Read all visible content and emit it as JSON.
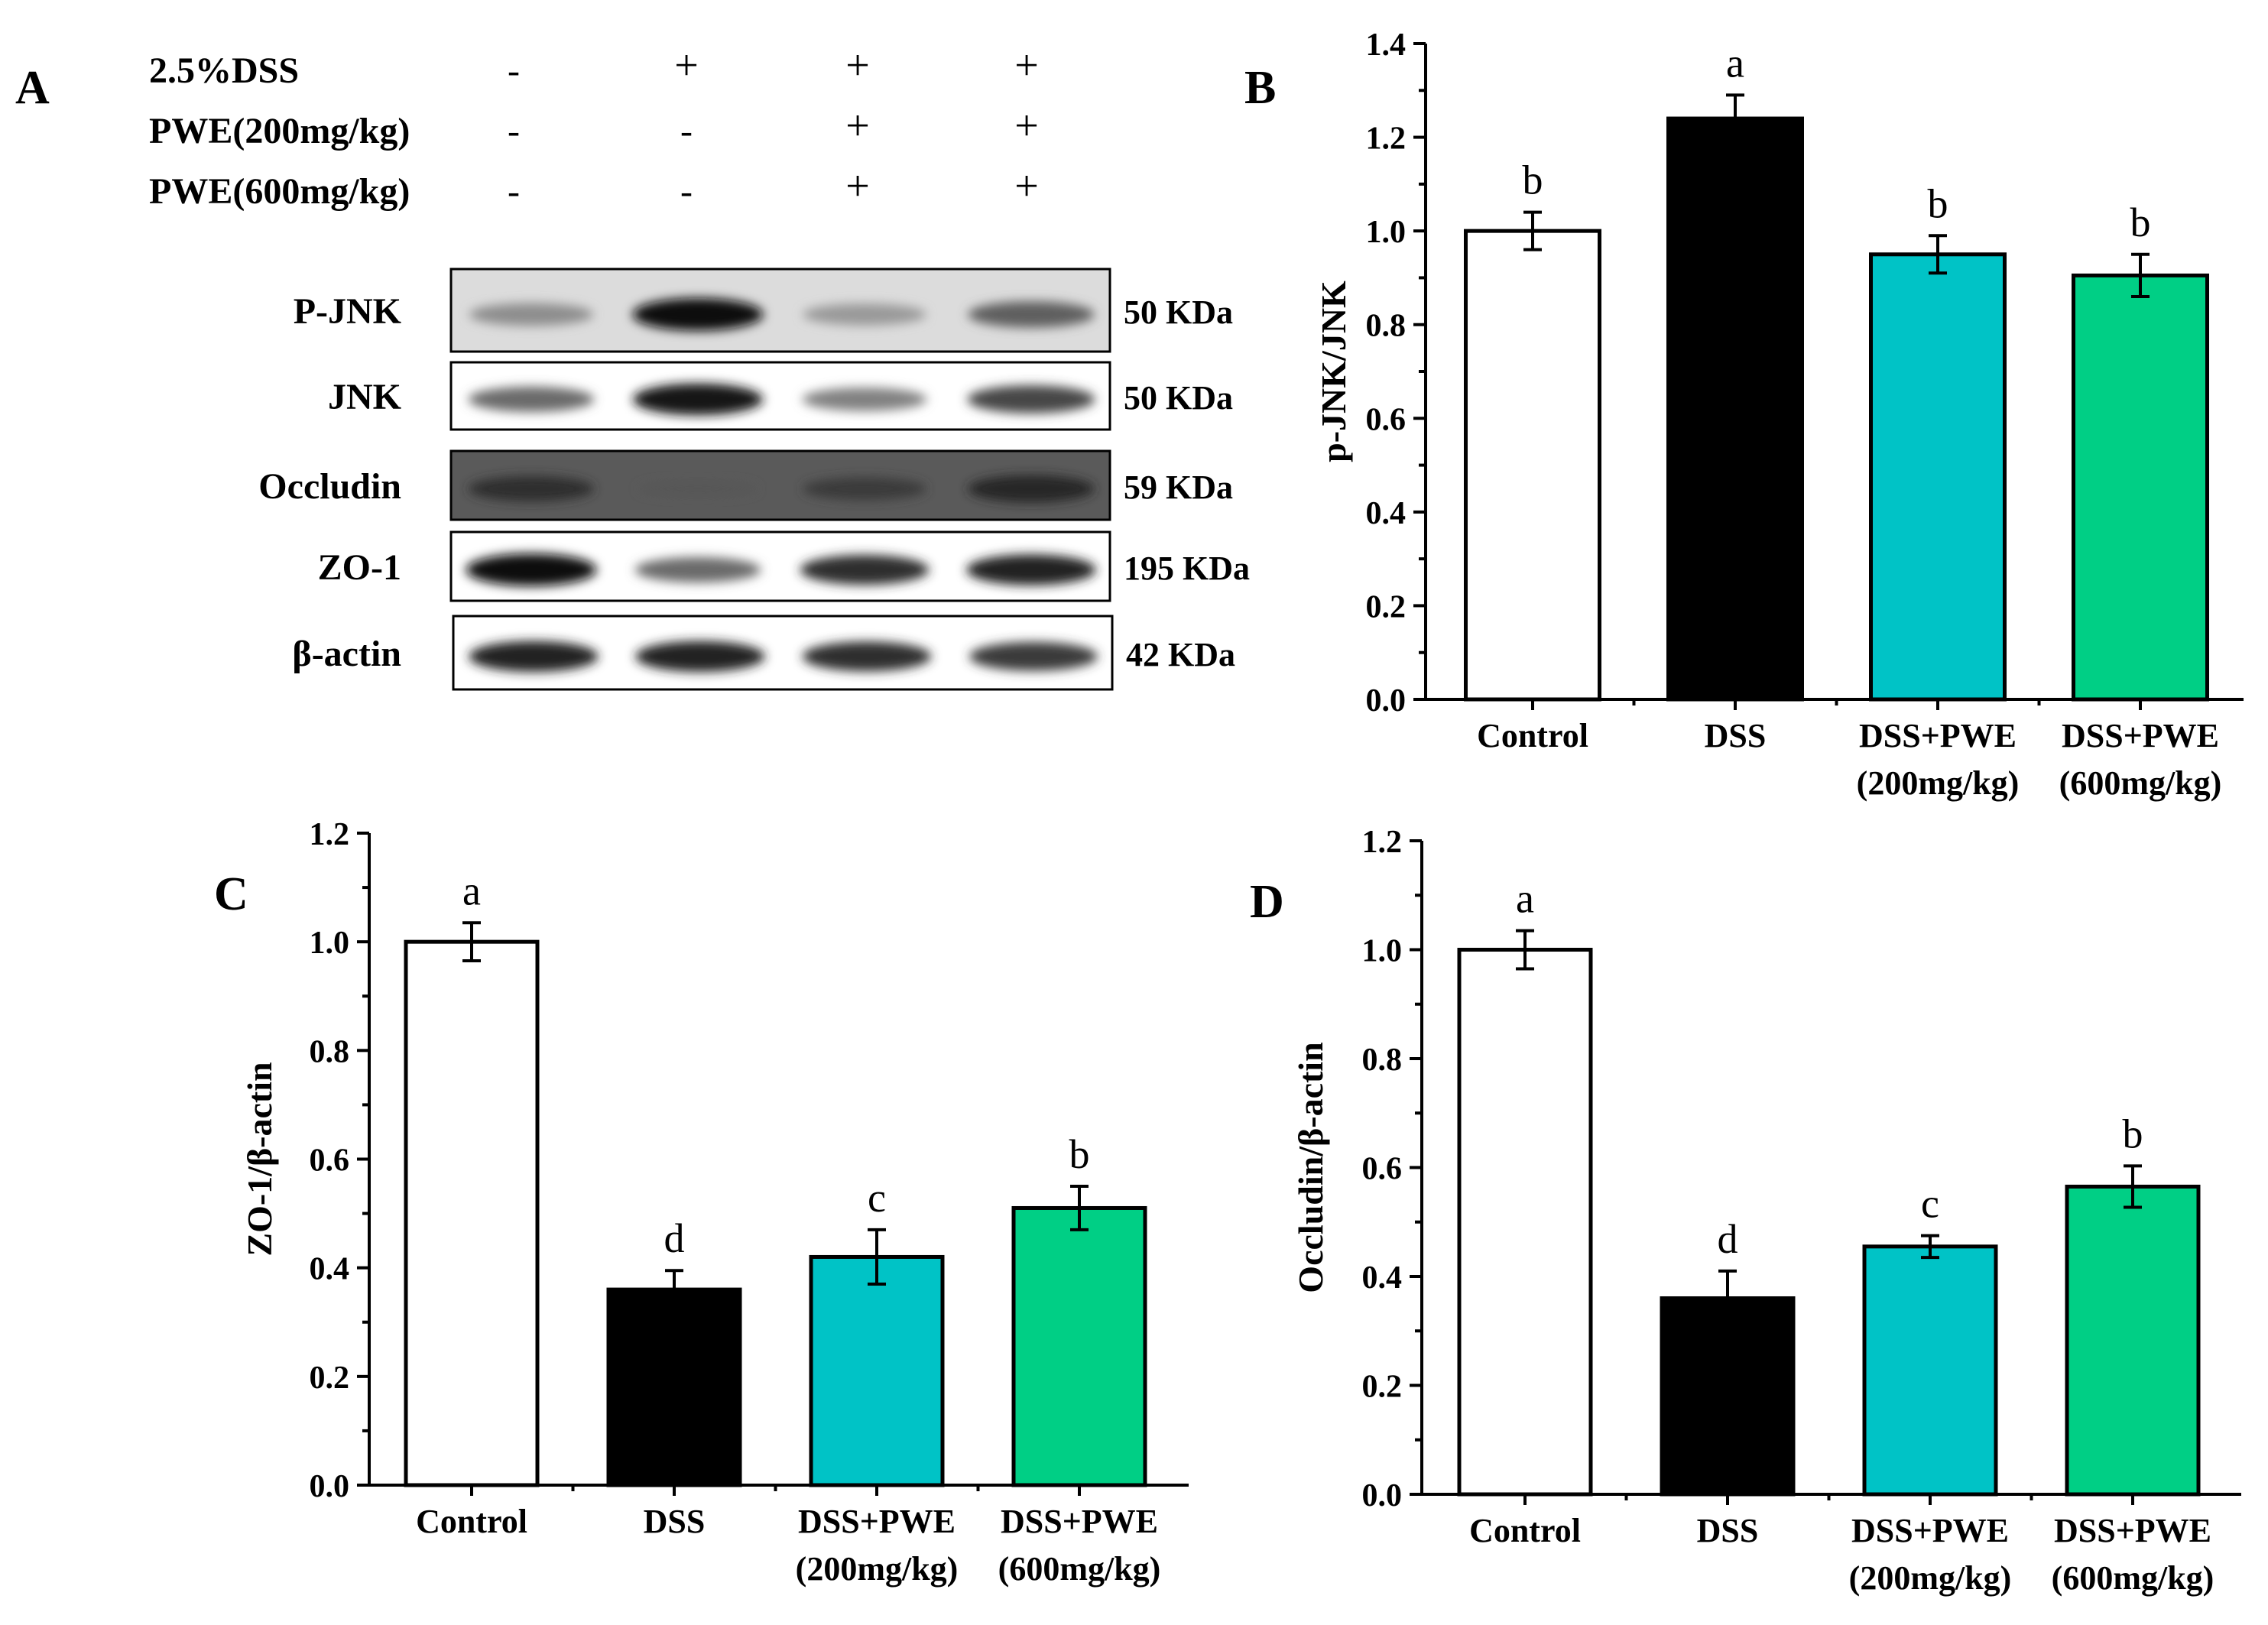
{
  "panel_labels": [
    "A",
    "B",
    "C",
    "D"
  ],
  "colors": {
    "control": "#ffffff",
    "dss": "#000000",
    "pwe200": "#00c3c6",
    "pwe600": "#00cf85",
    "axis": "#000000"
  },
  "blot": {
    "treatment_rows": [
      {
        "label": "2.5%DSS",
        "marks": [
          "-",
          "+",
          "+",
          "+"
        ]
      },
      {
        "label": "PWE(200mg/kg)",
        "marks": [
          "-",
          "-",
          "+",
          "+"
        ]
      },
      {
        "label": "PWE(600mg/kg)",
        "marks": [
          "-",
          "-",
          "+",
          "+"
        ]
      }
    ],
    "bands": [
      {
        "protein": "P-JNK",
        "size": "50 KDa",
        "intensities": [
          0.4,
          0.95,
          0.35,
          0.6
        ]
      },
      {
        "protein": "JNK",
        "size": "50 KDa",
        "intensities": [
          0.55,
          0.9,
          0.45,
          0.7
        ]
      },
      {
        "protein": "Occludin",
        "size": "59 KDa",
        "intensities": [
          0.55,
          0.05,
          0.4,
          0.65
        ]
      },
      {
        "protein": "ZO-1",
        "size": "195 KDa",
        "intensities": [
          0.95,
          0.55,
          0.8,
          0.85
        ]
      },
      {
        "protein": "β-actin",
        "size": "42 KDa",
        "intensities": [
          0.85,
          0.85,
          0.8,
          0.75
        ]
      }
    ]
  },
  "chart_data": [
    {
      "panel": "B",
      "type": "bar",
      "categories": [
        [
          "Control"
        ],
        [
          "DSS"
        ],
        [
          "DSS+PWE",
          "(200mg/kg)"
        ],
        [
          "DSS+PWE",
          "(600mg/kg)"
        ]
      ],
      "values": [
        1.0,
        1.24,
        0.95,
        0.905
      ],
      "errors": [
        0.04,
        0.05,
        0.04,
        0.045
      ],
      "letters": [
        "b",
        "a",
        "b",
        "b"
      ],
      "ylabel": "p-JNK/JNK",
      "ylim": [
        0,
        1.4
      ],
      "yticks": [
        0.0,
        0.2,
        0.4,
        0.6,
        0.8,
        1.0,
        1.2,
        1.4
      ]
    },
    {
      "panel": "C",
      "type": "bar",
      "categories": [
        [
          "Control"
        ],
        [
          "DSS"
        ],
        [
          "DSS+PWE",
          "(200mg/kg)"
        ],
        [
          "DSS+PWE",
          "(600mg/kg)"
        ]
      ],
      "values": [
        1.0,
        0.36,
        0.42,
        0.51
      ],
      "errors": [
        0.035,
        0.035,
        0.05,
        0.04
      ],
      "letters": [
        "a",
        "d",
        "c",
        "b"
      ],
      "ylabel": "ZO-1/β-actin",
      "ylim": [
        0,
        1.2
      ],
      "yticks": [
        0.0,
        0.2,
        0.4,
        0.6,
        0.8,
        1.0,
        1.2
      ]
    },
    {
      "panel": "D",
      "type": "bar",
      "categories": [
        [
          "Control"
        ],
        [
          "DSS"
        ],
        [
          "DSS+PWE",
          "(200mg/kg)"
        ],
        [
          "DSS+PWE",
          "(600mg/kg)"
        ]
      ],
      "values": [
        1.0,
        0.36,
        0.455,
        0.565
      ],
      "errors": [
        0.035,
        0.05,
        0.02,
        0.038
      ],
      "letters": [
        "a",
        "d",
        "c",
        "b"
      ],
      "ylabel": "Occludin/β-actin",
      "ylim": [
        0,
        1.2
      ],
      "yticks": [
        0.0,
        0.2,
        0.4,
        0.6,
        0.8,
        1.0,
        1.2
      ]
    }
  ]
}
